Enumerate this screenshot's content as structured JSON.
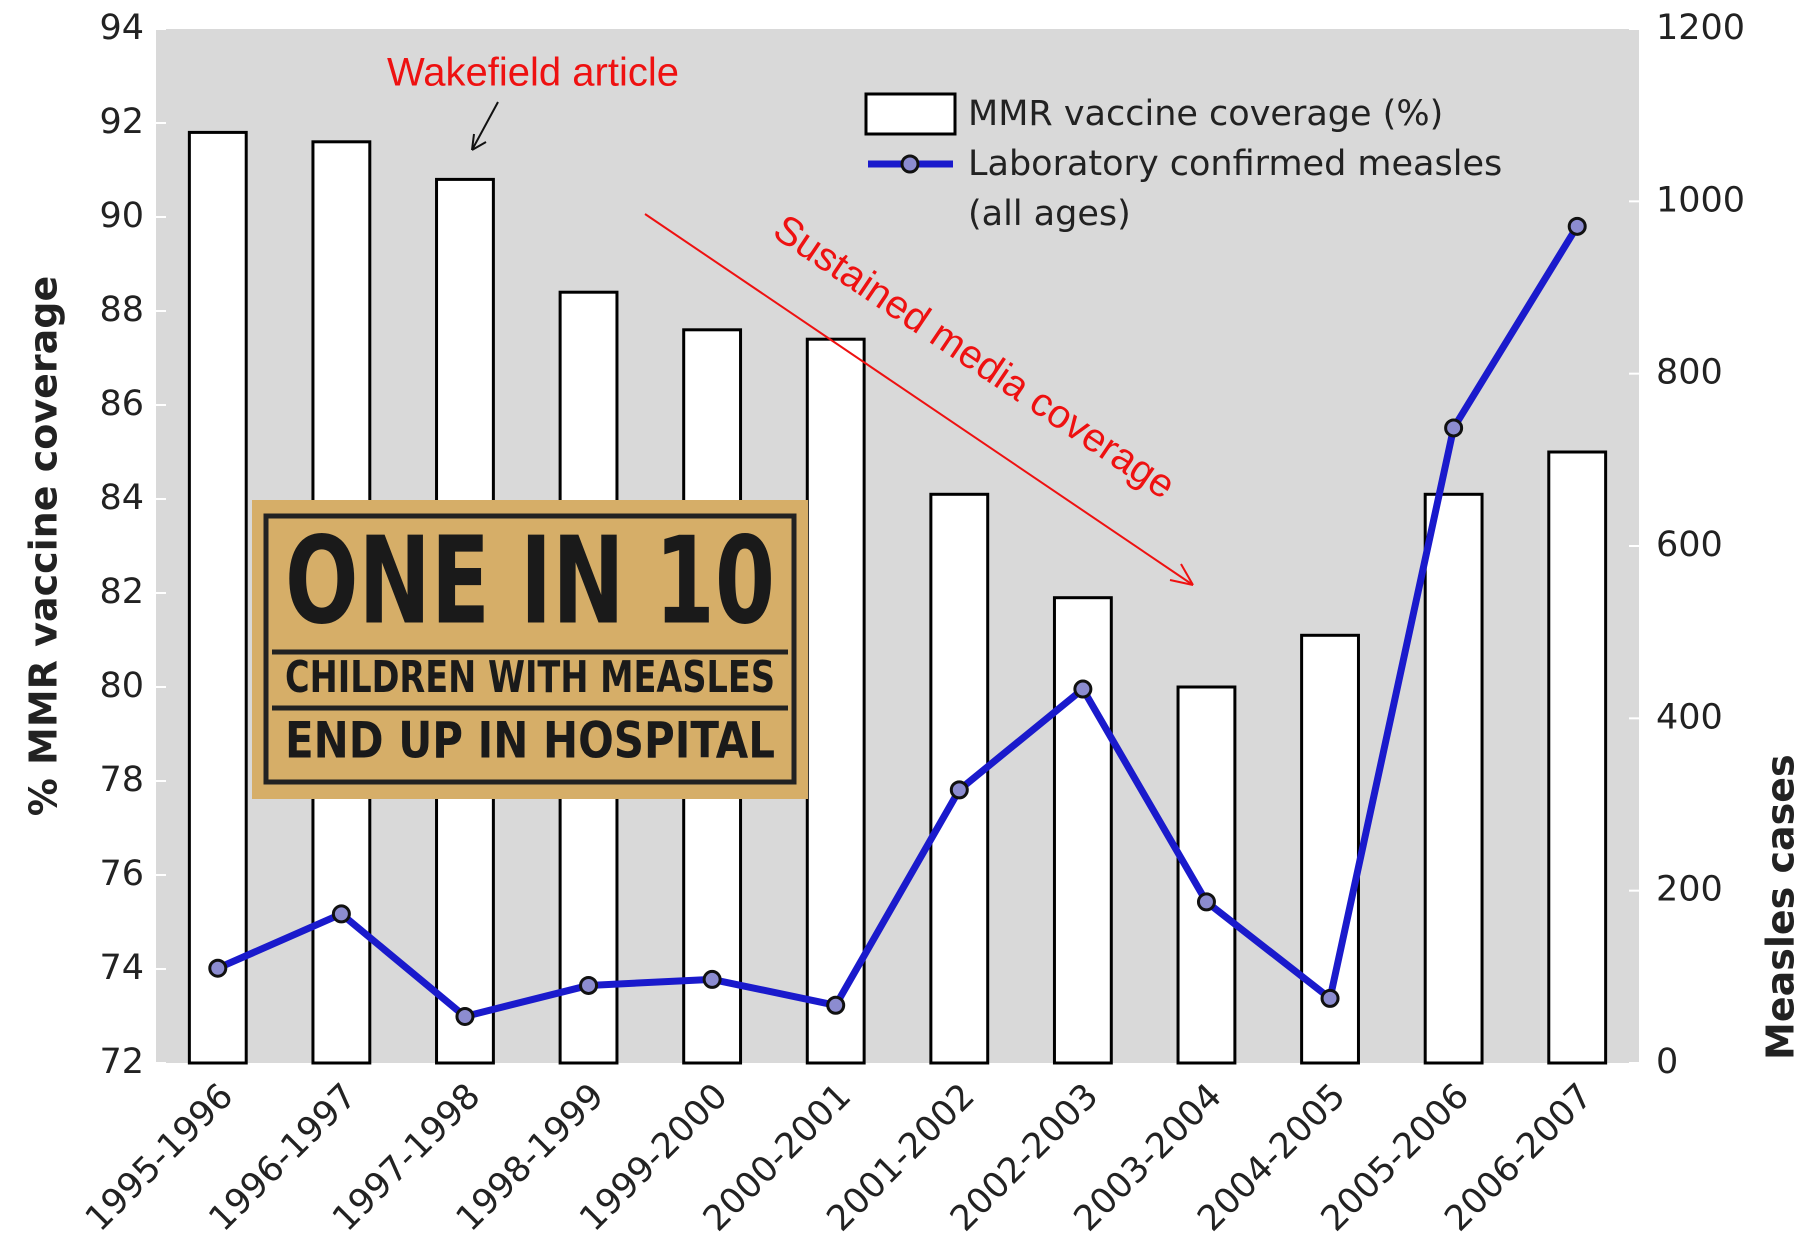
{
  "chart_data": {
    "type": "bar-line",
    "categories": [
      "1995-1996",
      "1996-1997",
      "1997-1998",
      "1998-1999",
      "1999-2000",
      "2000-2001",
      "2001-2002",
      "2002-2003",
      "2003-2004",
      "2004-2005",
      "2005-2006",
      "2006-2007"
    ],
    "series": [
      {
        "name": "MMR vaccine coverage (%)",
        "type": "bar",
        "color": "#ffffff",
        "axis": "y",
        "values": [
          91.8,
          91.6,
          90.8,
          88.4,
          87.6,
          87.4,
          84.1,
          81.9,
          80.0,
          81.1,
          84.1,
          85.0
        ]
      },
      {
        "name": "Laboratory confirmed measles (all ages)",
        "type": "line",
        "color": "#1a1acc",
        "axis": "y2",
        "values": [
          110,
          173,
          54,
          90,
          97,
          67,
          317,
          434,
          187,
          75,
          737,
          971
        ]
      }
    ],
    "ylabel": "% MMR vaccine coverage",
    "y2label": "Measles cases",
    "ylim": [
      72,
      94
    ],
    "yticks": [
      72,
      74,
      76,
      78,
      80,
      82,
      84,
      86,
      88,
      90,
      92,
      94
    ],
    "y2lim": [
      0,
      1200
    ],
    "y2ticks": [
      0,
      200,
      400,
      600,
      800,
      1000,
      1200
    ],
    "legend": "top-right",
    "annotations": {
      "wakefield": "Wakefield article",
      "media": "Sustained media coverage",
      "poster": [
        "ONE IN 10",
        "CHILDREN WITH MEASLES",
        "END UP IN HOSPITAL"
      ]
    }
  }
}
